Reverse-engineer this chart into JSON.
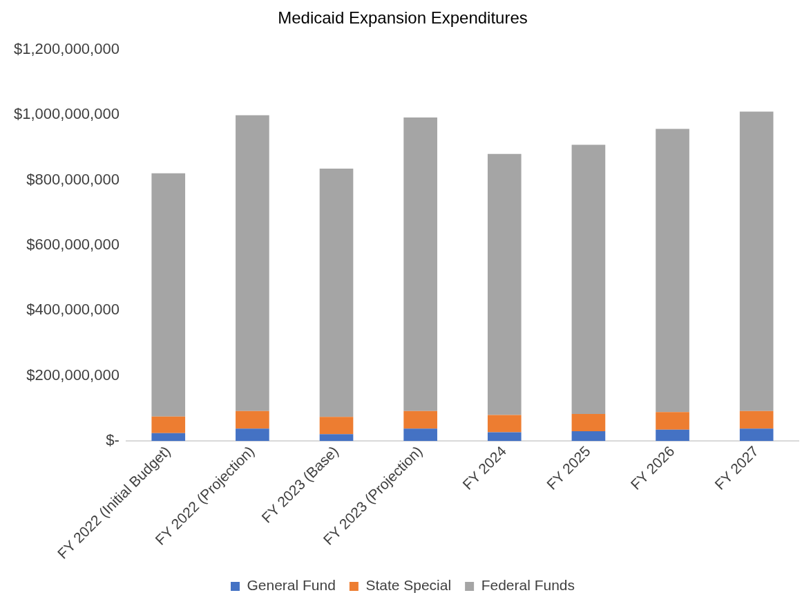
{
  "chart_data": {
    "type": "bar",
    "title": "Medicaid Expansion Expenditures",
    "stacked": true,
    "categories": [
      "FY 2022 (Initial Budget)",
      "FY 2022 (Projection)",
      "FY 2023 (Base)",
      "FY 2023 (Projection)",
      "FY 2024",
      "FY 2025",
      "FY 2026",
      "FY 2027"
    ],
    "series": [
      {
        "name": "General Fund",
        "color": "#4472c4",
        "values": [
          24000000,
          38000000,
          21000000,
          38000000,
          27000000,
          30000000,
          35000000,
          38000000
        ]
      },
      {
        "name": "State Special",
        "color": "#ed7d31",
        "values": [
          51000000,
          54000000,
          53000000,
          54000000,
          53000000,
          53000000,
          54000000,
          54000000
        ]
      },
      {
        "name": "Federal Funds",
        "color": "#a5a5a5",
        "values": [
          746000000,
          907000000,
          761000000,
          900000000,
          800000000,
          825000000,
          868000000,
          918000000
        ]
      }
    ],
    "ylim": [
      0,
      1200000000
    ],
    "yticks": [
      {
        "value": 0,
        "label": "$-"
      },
      {
        "value": 200000000,
        "label": "$200,000,000"
      },
      {
        "value": 400000000,
        "label": "$400,000,000"
      },
      {
        "value": 600000000,
        "label": "$600,000,000"
      },
      {
        "value": 800000000,
        "label": "$800,000,000"
      },
      {
        "value": 1000000000,
        "label": "$1,000,000,000"
      },
      {
        "value": 1200000000,
        "label": "$1,200,000,000"
      }
    ],
    "grid": false,
    "legend": "bottom"
  }
}
